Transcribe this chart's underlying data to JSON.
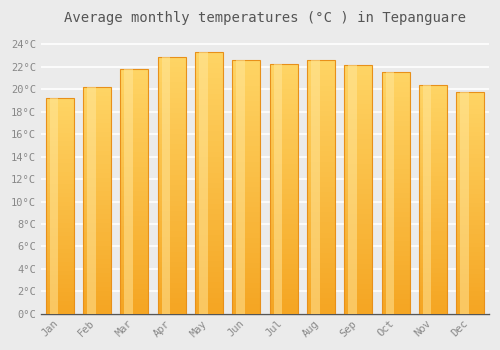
{
  "months": [
    "Jan",
    "Feb",
    "Mar",
    "Apr",
    "May",
    "Jun",
    "Jul",
    "Aug",
    "Sep",
    "Oct",
    "Nov",
    "Dec"
  ],
  "values": [
    19.2,
    20.2,
    21.8,
    22.9,
    23.3,
    22.6,
    22.3,
    22.6,
    22.2,
    21.5,
    20.4,
    19.8
  ],
  "bar_color_bottom": "#F5A623",
  "bar_color_top": "#FFD966",
  "bar_color_edge": "#E8901A",
  "bar_center_highlight": "#FFE599",
  "title": "Average monthly temperatures (°C ) in Tepanguare",
  "title_fontsize": 10,
  "ylim": [
    0,
    25
  ],
  "yticks": [
    0,
    2,
    4,
    6,
    8,
    10,
    12,
    14,
    16,
    18,
    20,
    22,
    24
  ],
  "ytick_labels": [
    "0°C",
    "2°C",
    "4°C",
    "6°C",
    "8°C",
    "10°C",
    "12°C",
    "14°C",
    "16°C",
    "18°C",
    "20°C",
    "22°C",
    "24°C"
  ],
  "background_color": "#ebebeb",
  "plot_bg_color": "#ebebeb",
  "grid_color": "#ffffff",
  "tick_color": "#888888",
  "label_color": "#888888",
  "bar_width": 0.75
}
